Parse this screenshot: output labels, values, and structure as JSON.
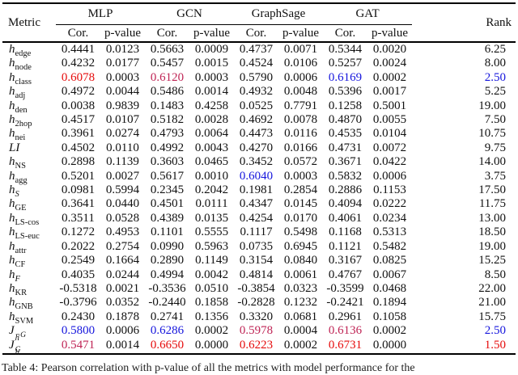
{
  "palette": {
    "1": "#e60b0b",
    "2": "#1515dd",
    "3": "#bf2455"
  },
  "table": {
    "header": {
      "metric": "Metric",
      "rank": "Rank",
      "groups": [
        "MLP",
        "GCN",
        "GraphSage",
        "GAT"
      ],
      "cor": "Cor.",
      "pvalue": "p-value"
    },
    "rows": [
      {
        "m": [
          "h",
          "edge",
          ""
        ],
        "v": [
          "0.4441",
          "0.0123",
          "0.5663",
          "0.0009",
          "0.4737",
          "0.0071",
          "0.5344",
          "0.0020",
          "6.25"
        ],
        "c": [
          null,
          null,
          null,
          null,
          null,
          null,
          null,
          null,
          null
        ]
      },
      {
        "m": [
          "h",
          "node",
          ""
        ],
        "v": [
          "0.4232",
          "0.0177",
          "0.5457",
          "0.0015",
          "0.4524",
          "0.0106",
          "0.5257",
          "0.0024",
          "8.00"
        ],
        "c": [
          null,
          null,
          null,
          null,
          null,
          null,
          null,
          null,
          null
        ]
      },
      {
        "m": [
          "h",
          "class",
          ""
        ],
        "v": [
          "0.6078",
          "0.0003",
          "0.6120",
          "0.0003",
          "0.5790",
          "0.0006",
          "0.6169",
          "0.0002",
          "2.50"
        ],
        "c": [
          "1",
          null,
          "3",
          null,
          null,
          null,
          "2",
          null,
          "2"
        ]
      },
      {
        "m": [
          "h",
          "adj",
          ""
        ],
        "v": [
          "0.4972",
          "0.0044",
          "0.5486",
          "0.0014",
          "0.4932",
          "0.0048",
          "0.5396",
          "0.0017",
          "5.25"
        ],
        "c": [
          null,
          null,
          null,
          null,
          null,
          null,
          null,
          null,
          null
        ]
      },
      {
        "m": [
          "h",
          "den",
          ""
        ],
        "v": [
          "0.0038",
          "0.9839",
          "0.1483",
          "0.4258",
          "0.0525",
          "0.7791",
          "0.1258",
          "0.5001",
          "19.00"
        ],
        "c": [
          null,
          null,
          null,
          null,
          null,
          null,
          null,
          null,
          null
        ]
      },
      {
        "m": [
          "h",
          "2hop",
          ""
        ],
        "v": [
          "0.4517",
          "0.0107",
          "0.5182",
          "0.0028",
          "0.4692",
          "0.0078",
          "0.4870",
          "0.0055",
          "7.50"
        ],
        "c": [
          null,
          null,
          null,
          null,
          null,
          null,
          null,
          null,
          null
        ]
      },
      {
        "m": [
          "h",
          "nei",
          ""
        ],
        "v": [
          "0.3961",
          "0.0274",
          "0.4793",
          "0.0064",
          "0.4473",
          "0.0116",
          "0.4535",
          "0.0104",
          "10.75"
        ],
        "c": [
          null,
          null,
          null,
          null,
          null,
          null,
          null,
          null,
          null
        ]
      },
      {
        "m": [
          "LI",
          "",
          ""
        ],
        "v": [
          "0.4502",
          "0.0110",
          "0.4992",
          "0.0043",
          "0.4270",
          "0.0166",
          "0.4731",
          "0.0072",
          "9.75"
        ],
        "c": [
          null,
          null,
          null,
          null,
          null,
          null,
          null,
          null,
          null
        ]
      },
      {
        "m": [
          "h",
          "NS",
          ""
        ],
        "v": [
          "0.2898",
          "0.1139",
          "0.3603",
          "0.0465",
          "0.3452",
          "0.0572",
          "0.3671",
          "0.0422",
          "14.00"
        ],
        "c": [
          null,
          null,
          null,
          null,
          null,
          null,
          null,
          null,
          null
        ]
      },
      {
        "m": [
          "h",
          "agg",
          ""
        ],
        "v": [
          "0.5201",
          "0.0027",
          "0.5617",
          "0.0010",
          "0.6040",
          "0.0003",
          "0.5832",
          "0.0006",
          "3.75"
        ],
        "c": [
          null,
          null,
          null,
          null,
          "2",
          null,
          null,
          null,
          null
        ]
      },
      {
        "m": [
          "h",
          "S",
          "",
          1
        ],
        "v": [
          "0.0981",
          "0.5994",
          "0.2345",
          "0.2042",
          "0.1981",
          "0.2854",
          "0.2886",
          "0.1153",
          "17.50"
        ],
        "c": [
          null,
          null,
          null,
          null,
          null,
          null,
          null,
          null,
          null
        ]
      },
      {
        "m": [
          "h",
          "GE",
          ""
        ],
        "v": [
          "0.3641",
          "0.0440",
          "0.4501",
          "0.0111",
          "0.4347",
          "0.0145",
          "0.4094",
          "0.0222",
          "11.75"
        ],
        "c": [
          null,
          null,
          null,
          null,
          null,
          null,
          null,
          null,
          null
        ]
      },
      {
        "m": [
          "h",
          "LS-cos",
          ""
        ],
        "v": [
          "0.3511",
          "0.0528",
          "0.4389",
          "0.0135",
          "0.4254",
          "0.0170",
          "0.4061",
          "0.0234",
          "13.00"
        ],
        "c": [
          null,
          null,
          null,
          null,
          null,
          null,
          null,
          null,
          null
        ]
      },
      {
        "m": [
          "h",
          "LS-euc",
          ""
        ],
        "v": [
          "0.1272",
          "0.4953",
          "0.1101",
          "0.5555",
          "0.1117",
          "0.5498",
          "0.1168",
          "0.5313",
          "18.50"
        ],
        "c": [
          null,
          null,
          null,
          null,
          null,
          null,
          null,
          null,
          null
        ]
      },
      {
        "m": [
          "h",
          "attr",
          ""
        ],
        "v": [
          "0.2022",
          "0.2754",
          "0.0990",
          "0.5963",
          "0.0735",
          "0.6945",
          "0.1121",
          "0.5482",
          "19.00"
        ],
        "c": [
          null,
          null,
          null,
          null,
          null,
          null,
          null,
          null,
          null
        ]
      },
      {
        "m": [
          "h",
          "CF",
          ""
        ],
        "v": [
          "0.2549",
          "0.1664",
          "0.2890",
          "0.1149",
          "0.3154",
          "0.0840",
          "0.3167",
          "0.0825",
          "15.25"
        ],
        "c": [
          null,
          null,
          null,
          null,
          null,
          null,
          null,
          null,
          null
        ]
      },
      {
        "m": [
          "h",
          "F",
          "",
          1
        ],
        "v": [
          "0.4035",
          "0.0244",
          "0.4994",
          "0.0042",
          "0.4814",
          "0.0061",
          "0.4767",
          "0.0067",
          "8.50"
        ],
        "c": [
          null,
          null,
          null,
          null,
          null,
          null,
          null,
          null,
          null
        ]
      },
      {
        "m": [
          "h",
          "KR",
          ""
        ],
        "v": [
          "-0.5318",
          "0.0021",
          "-0.3536",
          "0.0510",
          "-0.3854",
          "0.0323",
          "-0.3599",
          "0.0468",
          "22.00"
        ],
        "c": [
          null,
          null,
          null,
          null,
          null,
          null,
          null,
          null,
          null
        ]
      },
      {
        "m": [
          "h",
          "GNB",
          ""
        ],
        "v": [
          "-0.3796",
          "0.0352",
          "-0.2440",
          "0.1858",
          "-0.2828",
          "0.1232",
          "-0.2421",
          "0.1894",
          "21.00"
        ],
        "c": [
          null,
          null,
          null,
          null,
          null,
          null,
          null,
          null,
          null
        ]
      },
      {
        "m": [
          "h",
          "SVM",
          ""
        ],
        "v": [
          "0.2430",
          "0.1878",
          "0.2741",
          "0.1356",
          "0.3320",
          "0.0681",
          "0.2961",
          "0.1058",
          "15.75"
        ],
        "c": [
          null,
          null,
          null,
          null,
          null,
          null,
          null,
          null,
          null
        ]
      },
      {
        "m": [
          "J",
          "h",
          "¬G"
        ],
        "v": [
          "0.5800",
          "0.0006",
          "0.6286",
          "0.0002",
          "0.5978",
          "0.0004",
          "0.6136",
          "0.0002",
          "2.50"
        ],
        "c": [
          "2",
          null,
          "2",
          null,
          "3",
          null,
          "3",
          null,
          "2"
        ]
      },
      {
        "m": [
          "J",
          "h",
          "G"
        ],
        "v": [
          "0.5471",
          "0.0014",
          "0.6650",
          "0.0000",
          "0.6223",
          "0.0002",
          "0.6731",
          "0.0000",
          "1.50"
        ],
        "c": [
          "3",
          null,
          "1",
          null,
          "1",
          null,
          "1",
          null,
          "1"
        ]
      }
    ]
  },
  "caption": {
    "text": "Table 4: Pearson correlation with p-value of all the metrics with model performance for the"
  }
}
